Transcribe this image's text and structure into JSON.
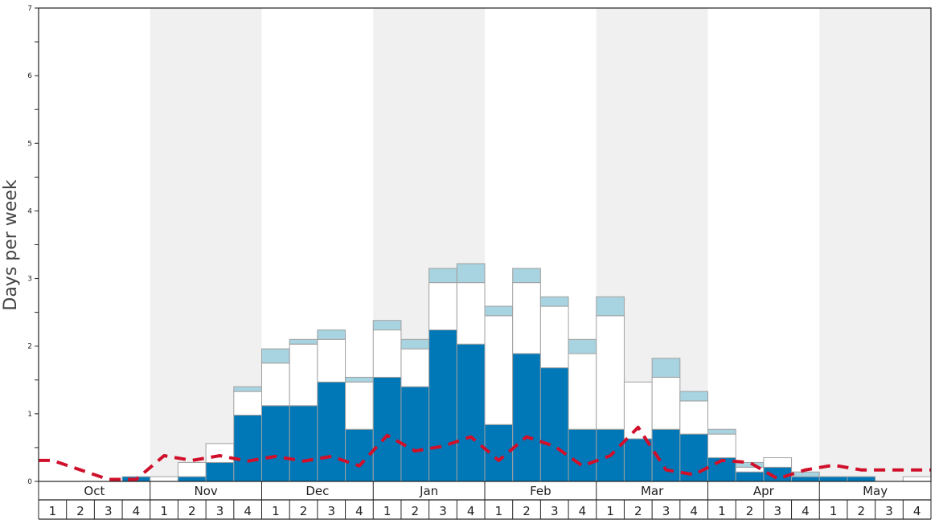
{
  "chart_data": {
    "type": "bar",
    "ylabel": "Days per week",
    "ylim": [
      0,
      7
    ],
    "y_ticks": [
      "0",
      "1",
      "2",
      "3",
      "4",
      "5",
      "6",
      "7"
    ],
    "months": [
      "Oct",
      "Nov",
      "Dec",
      "Jan",
      "Feb",
      "Mar",
      "Apr",
      "May"
    ],
    "weeks": [
      "1",
      "2",
      "3",
      "4",
      "1",
      "2",
      "3",
      "4",
      "1",
      "2",
      "3",
      "4",
      "1",
      "2",
      "3",
      "4",
      "1",
      "2",
      "3",
      "4",
      "1",
      "2",
      "3",
      "4",
      "1",
      "2",
      "3",
      "4",
      "1",
      "2",
      "3",
      "4"
    ],
    "series": [
      {
        "color": "#0077b6",
        "values": [
          0,
          0,
          0,
          0.07,
          0,
          0.07,
          0.28,
          0.98,
          1.12,
          1.12,
          1.47,
          0.77,
          1.54,
          1.4,
          2.24,
          2.03,
          0.84,
          1.89,
          1.68,
          0.77,
          0.77,
          0.63,
          0.77,
          0.7,
          0.35,
          0.14,
          0.21,
          0.07,
          0.07,
          0.07,
          0,
          0
        ]
      },
      {
        "color": "#ffffff",
        "values": [
          0,
          0,
          0,
          0,
          0.07,
          0.21,
          0.28,
          0.35,
          0.63,
          0.91,
          0.63,
          0.7,
          0.7,
          0.56,
          0.7,
          0.91,
          1.61,
          1.05,
          0.91,
          1.12,
          1.68,
          0.84,
          0.77,
          0.49,
          0.35,
          0.07,
          0.14,
          0,
          0,
          0,
          0,
          0.07
        ]
      },
      {
        "color": "#a8d3e0",
        "values": [
          0,
          0,
          0,
          0,
          0,
          0,
          0,
          0.07,
          0.21,
          0.07,
          0.14,
          0.07,
          0.14,
          0.14,
          0.21,
          0.28,
          0.14,
          0.21,
          0.14,
          0.21,
          0.28,
          0,
          0.28,
          0.14,
          0.07,
          0.07,
          0,
          0.07,
          0,
          0,
          0,
          0
        ]
      }
    ],
    "line": {
      "style": "dashed",
      "color": "#d0102a",
      "values": [
        0.31,
        0.17,
        0.03,
        0.03,
        0.38,
        0.31,
        0.38,
        0.3,
        0.37,
        0.3,
        0.37,
        0.23,
        0.68,
        0.45,
        0.52,
        0.66,
        0.31,
        0.66,
        0.52,
        0.23,
        0.38,
        0.8,
        0.17,
        0.1,
        0.31,
        0.28,
        0.04,
        0.17,
        0.24,
        0.17,
        0.17,
        0.17
      ]
    },
    "shaded_months": [
      "Nov",
      "Jan",
      "Mar",
      "May"
    ],
    "grid": false
  }
}
